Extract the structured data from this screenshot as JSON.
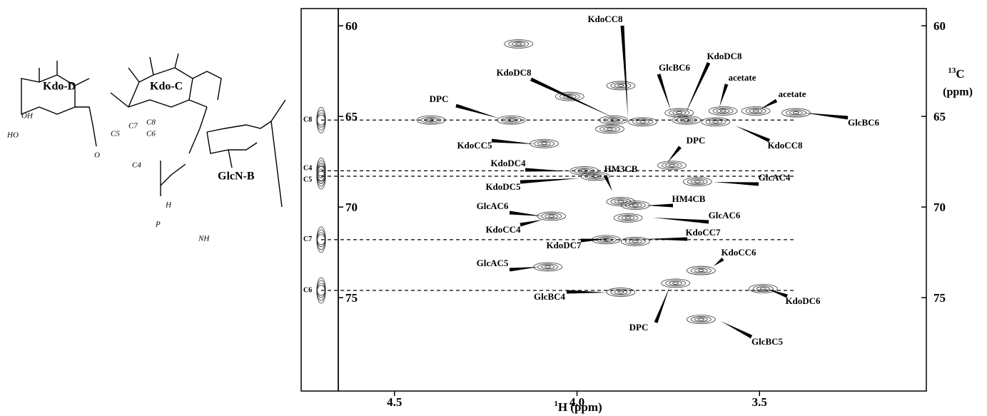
{
  "molecule": {
    "names": [
      "Kdo-D",
      "Kdo-C",
      "GlcN-B"
    ],
    "atoms": [
      "C4",
      "C5",
      "C6",
      "C7",
      "C8"
    ],
    "groups": [
      "OH",
      "HO",
      "O",
      "NH",
      "P",
      "H"
    ]
  },
  "chart_data": {
    "type": "contour",
    "xlabel": {
      "sup": "1",
      "text": "H  (ppm)"
    },
    "ylabel": {
      "sup": "13",
      "text": "C",
      "unit": "(ppm)"
    },
    "xlim": [
      4.654,
      3.043
    ],
    "ylim": [
      59.05,
      80.15
    ],
    "inverted": true,
    "xticks": [
      4.5,
      {
        "value": 4,
        "label": "4.0"
      },
      3.5
    ],
    "yticks": [
      60,
      65,
      70,
      75
    ],
    "color": "#333333",
    "peaks": {
      "x": [
        4.4,
        4.18,
        4.09,
        4.02,
        3.9,
        3.82,
        3.91,
        3.72,
        3.7,
        3.62,
        3.6,
        3.51,
        3.4,
        3.98,
        3.95,
        3.67,
        3.88,
        3.84,
        3.86,
        4.07,
        3.84,
        3.92,
        4.08,
        3.66,
        3.49,
        3.88,
        3.73,
        3.66,
        3.74,
        3.88,
        4.16
      ],
      "y": [
        65.2,
        65.2,
        66.5,
        63.9,
        65.2,
        65.3,
        65.7,
        64.8,
        65.2,
        65.3,
        64.7,
        64.7,
        64.8,
        68.0,
        68.3,
        68.6,
        69.7,
        69.9,
        70.6,
        70.5,
        71.9,
        71.8,
        73.3,
        73.5,
        74.5,
        74.7,
        74.2,
        76.2,
        67.7,
        63.3,
        61.0
      ]
    },
    "annotations": [
      "KdoCC8",
      "KdoDC8",
      "DPC",
      "GlcBC6",
      "KdoDC8",
      "acetate",
      "acetate",
      "GlcBC6",
      "KdoCC5",
      "KdoCC8",
      "DPC",
      "HM3CB",
      "KdoDC4",
      "GlcAC4",
      "KdoDC5",
      "HM4CB",
      "GlcAC6",
      "GlcAC6",
      "KdoCC4",
      "KdoCC7",
      "KdoDC7",
      "KdoCC6",
      "GlcAC5",
      "GlcBC4",
      "KdoDC6",
      "DPC",
      "GlcBC5"
    ],
    "strip": {
      "labels": [
        "C8",
        "C4",
        "C5",
        "C7",
        "C6"
      ],
      "values": [
        65.2,
        68.0,
        68.3,
        71.8,
        74.6
      ]
    }
  }
}
